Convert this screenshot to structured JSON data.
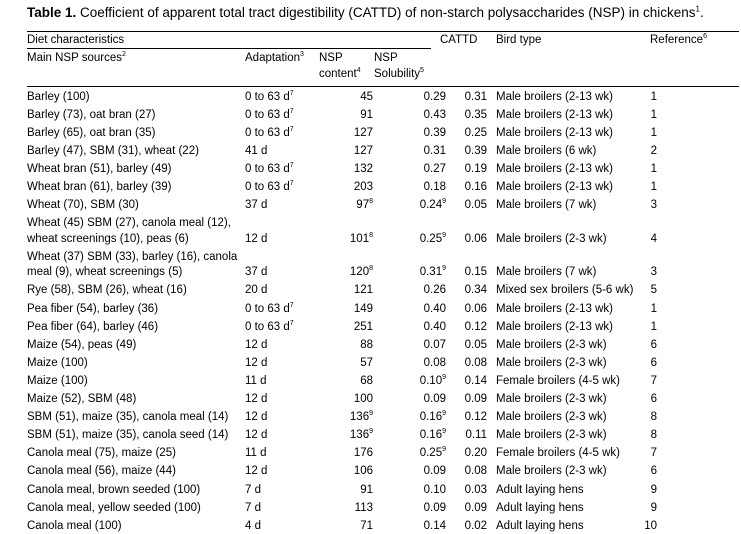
{
  "caption": {
    "label": "Table 1.",
    "text": " Coefficient of apparent total tract digestibility (CATTD) of non-starch polysaccharides (NSP) in chickens",
    "note": "1",
    "end": "."
  },
  "header": {
    "diet_characteristics": "Diet characteristics",
    "main_nsp_sources": "Main NSP sources",
    "main_nsp_sources_note": "2",
    "adaptation": "Adaptation",
    "adaptation_note": "3",
    "nsp": "NSP",
    "content": "content",
    "content_note": "4",
    "nsp2": "NSP",
    "solubility": "Solubility",
    "solubility_note": "5",
    "cattd": "CATTD",
    "bird_type": "Bird type",
    "reference": "Reference",
    "reference_note": "6"
  },
  "rows": [
    {
      "source": [
        "Barley (100)"
      ],
      "adapt": "0 to 63 d",
      "adapt_note": "7",
      "content": "45",
      "content_note": "",
      "sol": "0.29",
      "sol_note": "",
      "cattd": "0.31",
      "bird": "Male broilers (2-13 wk)",
      "ref": "1"
    },
    {
      "source": [
        "Barley (73), oat bran (27)"
      ],
      "adapt": "0 to 63 d",
      "adapt_note": "7",
      "content": "91",
      "content_note": "",
      "sol": "0.43",
      "sol_note": "",
      "cattd": "0.35",
      "bird": "Male broilers (2-13 wk)",
      "ref": "1"
    },
    {
      "source": [
        "Barley (65), oat bran (35)"
      ],
      "adapt": "0 to 63 d",
      "adapt_note": "7",
      "content": "127",
      "content_note": "",
      "sol": "0.39",
      "sol_note": "",
      "cattd": "0.25",
      "bird": "Male broilers (2-13 wk)",
      "ref": "1"
    },
    {
      "source": [
        "Barley (47), SBM (31), wheat (22)"
      ],
      "adapt": "41 d",
      "adapt_note": "",
      "content": "127",
      "content_note": "",
      "sol": "0.31",
      "sol_note": "",
      "cattd": "0.39",
      "bird": "Male broilers (6 wk)",
      "ref": "2"
    },
    {
      "source": [
        "Wheat bran (51), barley (49)"
      ],
      "adapt": "0 to 63 d",
      "adapt_note": "7",
      "content": "132",
      "content_note": "",
      "sol": "0.27",
      "sol_note": "",
      "cattd": "0.19",
      "bird": "Male broilers (2-13 wk)",
      "ref": "1"
    },
    {
      "source": [
        "Wheat bran (61), barley (39)"
      ],
      "adapt": "0 to 63 d",
      "adapt_note": "7",
      "content": "203",
      "content_note": "",
      "sol": "0.18",
      "sol_note": "",
      "cattd": "0.16",
      "bird": "Male broilers (2-13 wk)",
      "ref": "1"
    },
    {
      "source": [
        "Wheat (70), SBM (30)"
      ],
      "adapt": "37 d",
      "adapt_note": "",
      "content": "97",
      "content_note": "8",
      "sol": "0.24",
      "sol_note": "9",
      "cattd": "0.05",
      "bird": "Male broilers (7 wk)",
      "ref": "3"
    },
    {
      "source": [
        "Wheat (45) SBM (27), canola meal (12),",
        "wheat screenings (10), peas (6)"
      ],
      "adapt": "12 d",
      "adapt_note": "",
      "content": "101",
      "content_note": "8",
      "sol": "0.25",
      "sol_note": "9",
      "cattd": "0.06",
      "bird": "Male broilers (2-3 wk)",
      "ref": "4"
    },
    {
      "source": [
        "Wheat (37) SBM (33), barley (16), canola",
        "meal (9), wheat screenings (5)"
      ],
      "adapt": "37 d",
      "adapt_note": "",
      "content": "120",
      "content_note": "8",
      "sol": "0.31",
      "sol_note": "9",
      "cattd": "0.15",
      "bird": "Male broilers (7 wk)",
      "ref": "3"
    },
    {
      "source": [
        "Rye (58), SBM (26), wheat (16)"
      ],
      "adapt": "20 d",
      "adapt_note": "",
      "content": "121",
      "content_note": "",
      "sol": "0.26",
      "sol_note": "",
      "cattd": "0.34",
      "bird": "Mixed sex broilers (5-6 wk)",
      "ref": "5"
    },
    {
      "source": [
        "Pea fiber (54), barley (36)"
      ],
      "adapt": "0 to 63 d",
      "adapt_note": "7",
      "content": "149",
      "content_note": "",
      "sol": "0.40",
      "sol_note": "",
      "cattd": "0.06",
      "bird": "Male broilers (2-13 wk)",
      "ref": "1"
    },
    {
      "source": [
        "Pea fiber (64), barley (46)"
      ],
      "adapt": "0 to 63 d",
      "adapt_note": "7",
      "content": "251",
      "content_note": "",
      "sol": "0.40",
      "sol_note": "",
      "cattd": "0.12",
      "bird": "Male broilers (2-13 wk)",
      "ref": "1"
    },
    {
      "source": [
        "Maize (54), peas (49)"
      ],
      "adapt": "12 d",
      "adapt_note": "",
      "content": "88",
      "content_note": "",
      "sol": "0.07",
      "sol_note": "",
      "cattd": "0.05",
      "bird": "Male broilers (2-3 wk)",
      "ref": "6"
    },
    {
      "source": [
        "Maize (100)"
      ],
      "adapt": "12 d",
      "adapt_note": "",
      "content": "57",
      "content_note": "",
      "sol": "0.08",
      "sol_note": "",
      "cattd": "0.08",
      "bird": "Male broilers (2-3 wk)",
      "ref": "6"
    },
    {
      "source": [
        "Maize (100)"
      ],
      "adapt": "11 d",
      "adapt_note": "",
      "content": "68",
      "content_note": "",
      "sol": "0.10",
      "sol_note": "9",
      "cattd": "0.14",
      "bird": "Female broilers (4-5 wk)",
      "ref": "7"
    },
    {
      "source": [
        "Maize (52), SBM (48)"
      ],
      "adapt": "12 d",
      "adapt_note": "",
      "content": "100",
      "content_note": "",
      "sol": "0.09",
      "sol_note": "",
      "cattd": "0.09",
      "bird": "Male broilers (2-3 wk)",
      "ref": "6"
    },
    {
      "source": [
        "SBM (51), maize (35), canola meal (14)"
      ],
      "adapt": "12 d",
      "adapt_note": "",
      "content": "136",
      "content_note": "9",
      "sol": "0.16",
      "sol_note": "9",
      "cattd": "0.12",
      "bird": "Male broilers (2-3 wk)",
      "ref": "8"
    },
    {
      "source": [
        "SBM (51), maize (35), canola seed (14)"
      ],
      "adapt": "12 d",
      "adapt_note": "",
      "content": "136",
      "content_note": "9",
      "sol": "0.16",
      "sol_note": "9",
      "cattd": "0.11",
      "bird": "Male broilers (2-3 wk)",
      "ref": "8"
    },
    {
      "source": [
        "Canola meal (75), maize (25)"
      ],
      "adapt": "11 d",
      "adapt_note": "",
      "content": "176",
      "content_note": "",
      "sol": "0.25",
      "sol_note": "9",
      "cattd": "0.20",
      "bird": "Female broilers (4-5 wk)",
      "ref": "7"
    },
    {
      "source": [
        "Canola meal (56), maize (44)"
      ],
      "adapt": "12 d",
      "adapt_note": "",
      "content": "106",
      "content_note": "",
      "sol": "0.09",
      "sol_note": "",
      "cattd": "0.08",
      "bird": "Male broilers (2-3 wk)",
      "ref": "6"
    },
    {
      "source": [
        "Canola meal, brown seeded (100)"
      ],
      "adapt": "7 d",
      "adapt_note": "",
      "content": "91",
      "content_note": "",
      "sol": "0.10",
      "sol_note": "",
      "cattd": "0.03",
      "bird": "Adult laying hens",
      "ref": "9"
    },
    {
      "source": [
        "Canola meal, yellow seeded (100)"
      ],
      "adapt": "7 d",
      "adapt_note": "",
      "content": "113",
      "content_note": "",
      "sol": "0.09",
      "sol_note": "",
      "cattd": "0.09",
      "bird": "Adult laying hens",
      "ref": "9"
    },
    {
      "source": [
        "Canola meal (100)"
      ],
      "adapt": "4 d",
      "adapt_note": "",
      "content": "71",
      "content_note": "",
      "sol": "0.14",
      "sol_note": "",
      "cattd": "0.02",
      "bird": "Adult laying hens",
      "ref": "10"
    }
  ]
}
